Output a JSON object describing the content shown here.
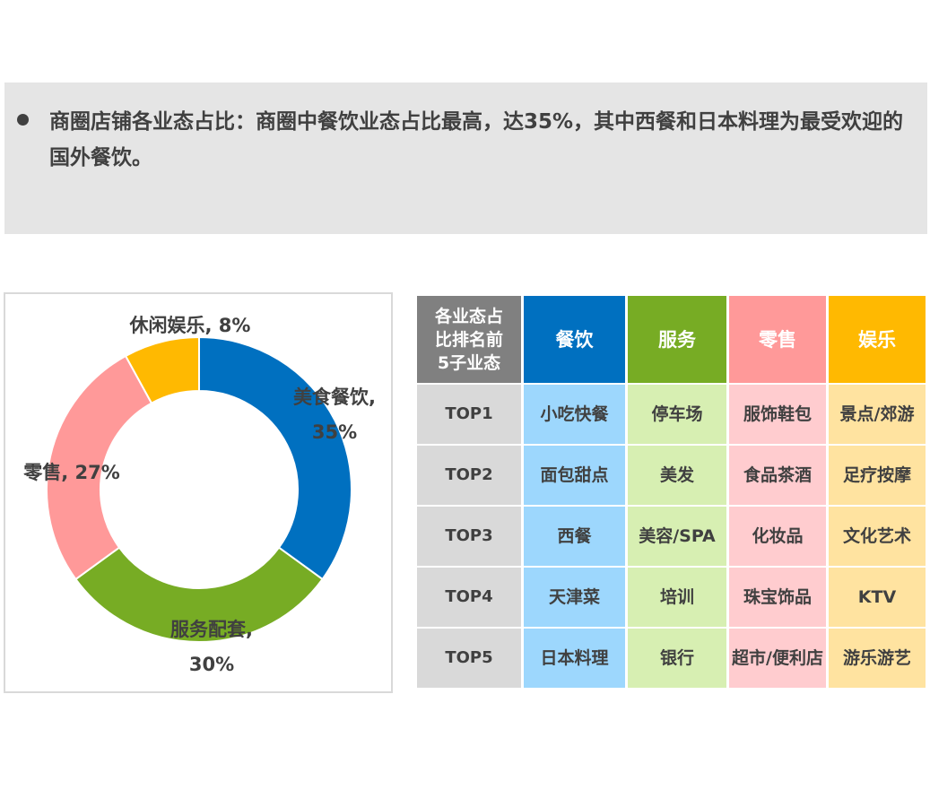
{
  "summary": {
    "text": "商圈店铺各业态占比：商圈中餐饮业态占比最高，达35%，其中西餐和日本料理为最受欢迎的国外餐饮。"
  },
  "chart_data": {
    "type": "pie",
    "style": "donut",
    "slices": [
      {
        "label": "美食餐饮",
        "value": 35,
        "color": "#0070c0",
        "label_line1": "美食餐饮,",
        "label_line2": "35%"
      },
      {
        "label": "服务配套",
        "value": 30,
        "color": "#77ac24",
        "label_line1": "服务配套,",
        "label_line2": "30%"
      },
      {
        "label": "零售",
        "value": 27,
        "color": "#ff9999",
        "label_line1": "零售, 27%"
      },
      {
        "label": "休闲娱乐",
        "value": 8,
        "color": "#ffb901",
        "label_line1": "休闲娱乐, 8%"
      }
    ],
    "title": "",
    "xlabel": "",
    "ylabel": ""
  },
  "table": {
    "corner": [
      "各业态占",
      "比排名前",
      "5子业态"
    ],
    "columns": [
      {
        "label": "餐饮",
        "header_color": "#0070c0",
        "cell_color": "#9dd7fd"
      },
      {
        "label": "服务",
        "header_color": "#77ac24",
        "cell_color": "#d7efb2"
      },
      {
        "label": "零售",
        "header_color": "#ff9999",
        "cell_color": "#ffcccf"
      },
      {
        "label": "娱乐",
        "header_color": "#ffb901",
        "cell_color": "#ffe3a0"
      }
    ],
    "rows": [
      {
        "label": "TOP1",
        "cells": [
          "小吃快餐",
          "停车场",
          "服饰鞋包",
          "景点/郊游"
        ]
      },
      {
        "label": "TOP2",
        "cells": [
          "面包甜点",
          "美发",
          "食品茶酒",
          "足疗按摩"
        ]
      },
      {
        "label": "TOP3",
        "cells": [
          "西餐",
          "美容/SPA",
          "化妆品",
          "文化艺术"
        ]
      },
      {
        "label": "TOP4",
        "cells": [
          "天津菜",
          "培训",
          "珠宝饰品",
          "KTV"
        ]
      },
      {
        "label": "TOP5",
        "cells": [
          "日本料理",
          "银行",
          "超市/便利店",
          "游乐游艺"
        ]
      }
    ]
  }
}
